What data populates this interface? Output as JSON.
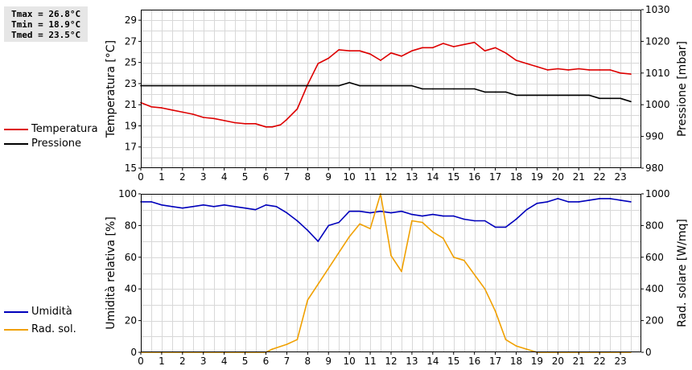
{
  "stats": {
    "tmax": "Tmax = 26.8°C",
    "tmin": "Tmin = 18.9°C",
    "tmed": "Tmed = 23.5°C"
  },
  "legend_top": [
    {
      "label": "Temperatura",
      "color": "#dd0000"
    },
    {
      "label": "Pressione",
      "color": "#000000"
    }
  ],
  "legend_bottom": [
    {
      "label": "Umidità",
      "color": "#0000bb"
    },
    {
      "label": "Rad. sol.",
      "color": "#f0a000"
    }
  ],
  "chart_data": [
    {
      "type": "line",
      "xlabel": "",
      "xlim": [
        0,
        24
      ],
      "xticks": [
        0,
        1,
        2,
        3,
        4,
        5,
        6,
        7,
        8,
        9,
        10,
        11,
        12,
        13,
        14,
        15,
        16,
        17,
        18,
        19,
        20,
        21,
        22,
        23
      ],
      "ylabel": "Temperatura [°C]",
      "ylim": [
        15,
        30
      ],
      "yticks": [
        15,
        17,
        19,
        21,
        23,
        25,
        27,
        29
      ],
      "y2label": "Pressione [mbar]",
      "y2lim": [
        980,
        1030
      ],
      "y2ticks": [
        980,
        990,
        1000,
        1010,
        1020,
        1030
      ],
      "grid": true,
      "series": [
        {
          "name": "Temperatura",
          "axis": "left",
          "color": "#dd0000",
          "x": [
            0,
            0.5,
            1,
            1.5,
            2,
            2.5,
            3,
            3.5,
            4,
            4.5,
            5,
            5.5,
            6,
            6.3,
            6.7,
            7,
            7.5,
            8,
            8.5,
            9,
            9.5,
            10,
            10.5,
            11,
            11.5,
            12,
            12.5,
            13,
            13.5,
            14,
            14.5,
            15,
            15.5,
            16,
            16.5,
            17,
            17.5,
            18,
            18.5,
            19,
            19.5,
            20,
            20.5,
            21,
            21.5,
            22,
            22.5,
            23,
            23.5
          ],
          "y": [
            21.2,
            20.8,
            20.7,
            20.5,
            20.3,
            20.1,
            19.8,
            19.7,
            19.5,
            19.3,
            19.2,
            19.2,
            18.9,
            18.9,
            19.1,
            19.6,
            20.6,
            22.9,
            24.9,
            25.4,
            26.2,
            26.1,
            26.1,
            25.8,
            25.2,
            25.9,
            25.6,
            26.1,
            26.4,
            26.4,
            26.8,
            26.5,
            26.7,
            26.9,
            26.1,
            26.4,
            25.9,
            25.2,
            24.9,
            24.6,
            24.3,
            24.4,
            24.3,
            24.4,
            24.3,
            24.3,
            24.3,
            24.0,
            23.9
          ]
        },
        {
          "name": "Pressione",
          "axis": "right",
          "color": "#000000",
          "x": [
            0,
            9.5,
            10,
            10.5,
            12,
            13,
            13.5,
            14,
            15,
            16,
            16.5,
            17,
            17.5,
            18,
            18.5,
            19,
            19.5,
            20,
            20.5,
            21,
            21.5,
            22,
            22.5,
            23,
            23.5
          ],
          "y": [
            1006,
            1006,
            1007,
            1006,
            1006,
            1006,
            1005,
            1005,
            1005,
            1005,
            1004,
            1004,
            1004,
            1003,
            1003,
            1003,
            1003,
            1003,
            1003,
            1003,
            1003,
            1002,
            1002,
            1002,
            1001
          ]
        }
      ]
    },
    {
      "type": "line",
      "xlabel": "",
      "xlim": [
        0,
        24
      ],
      "xticks": [
        0,
        1,
        2,
        3,
        4,
        5,
        6,
        7,
        8,
        9,
        10,
        11,
        12,
        13,
        14,
        15,
        16,
        17,
        18,
        19,
        20,
        21,
        22,
        23
      ],
      "ylabel": "Umidità relativa [%]",
      "ylim": [
        0,
        100
      ],
      "yticks": [
        0,
        20,
        40,
        60,
        80,
        100
      ],
      "y2label": "Rad. solare [W/mq]",
      "y2lim": [
        0,
        1000
      ],
      "y2ticks": [
        0,
        200,
        400,
        600,
        800,
        1000
      ],
      "grid": true,
      "series": [
        {
          "name": "Umidità",
          "axis": "left",
          "color": "#0000bb",
          "x": [
            0,
            0.5,
            1,
            1.5,
            2,
            2.5,
            3,
            3.5,
            4,
            4.5,
            5,
            5.5,
            6,
            6.5,
            7,
            7.5,
            8,
            8.5,
            9,
            9.5,
            10,
            10.5,
            11,
            11.5,
            12,
            12.5,
            13,
            13.5,
            14,
            14.5,
            15,
            15.5,
            16,
            16.5,
            17,
            17.5,
            18,
            18.5,
            19,
            19.5,
            20,
            20.5,
            21,
            21.5,
            22,
            22.5,
            23,
            23.5
          ],
          "y": [
            95,
            95,
            93,
            92,
            91,
            92,
            93,
            92,
            93,
            92,
            91,
            90,
            93,
            92,
            88,
            83,
            77,
            70,
            80,
            82,
            89,
            89,
            88,
            89,
            88,
            89,
            87,
            86,
            87,
            86,
            86,
            84,
            83,
            83,
            79,
            79,
            84,
            90,
            94,
            95,
            97,
            95,
            95,
            96,
            97,
            97,
            96,
            95
          ]
        },
        {
          "name": "Rad. sol.",
          "axis": "right",
          "color": "#f0a000",
          "x": [
            0,
            1,
            2,
            3,
            4,
            5,
            6,
            6.3,
            7,
            7.5,
            8,
            8.5,
            9,
            9.5,
            10,
            10.5,
            11,
            11.5,
            12,
            12.5,
            13,
            13.5,
            14,
            14.5,
            15,
            15.5,
            16,
            16.5,
            17,
            17.5,
            18,
            18.5,
            19,
            20,
            21,
            22,
            23,
            23.5
          ],
          "y": [
            0,
            0,
            0,
            0,
            0,
            0,
            0,
            20,
            50,
            80,
            330,
            430,
            530,
            630,
            730,
            810,
            780,
            1000,
            610,
            510,
            830,
            820,
            760,
            720,
            600,
            580,
            490,
            400,
            260,
            80,
            40,
            20,
            0,
            0,
            0,
            0,
            0,
            0
          ]
        }
      ]
    }
  ]
}
